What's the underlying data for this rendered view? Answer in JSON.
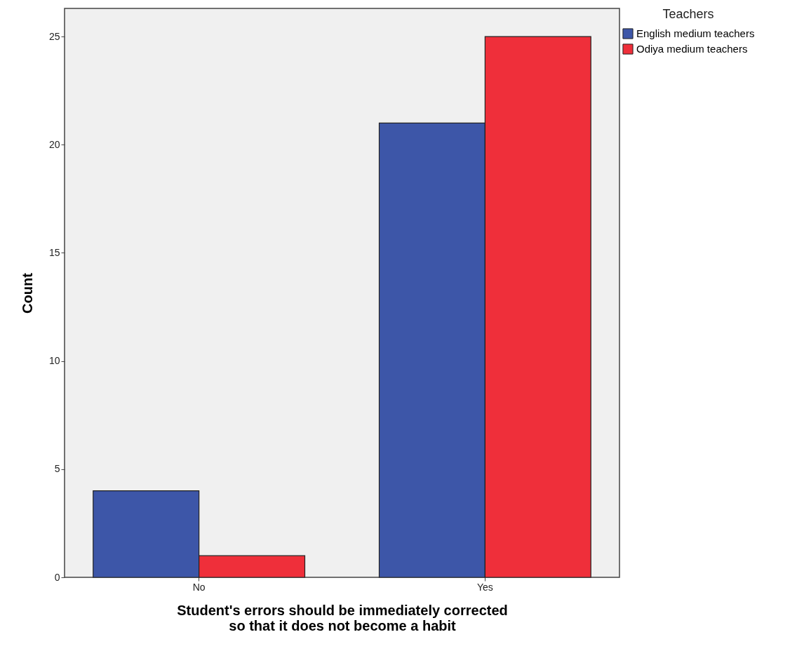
{
  "chart_data": {
    "type": "bar",
    "xlabel": "Student's errors should be immediately corrected so that it does not become a habit",
    "ylabel": "Count",
    "legend_title": "Teachers",
    "categories": [
      "No",
      "Yes"
    ],
    "series": [
      {
        "name": "English medium teachers",
        "color": "#3d56a8",
        "values": [
          4,
          21
        ]
      },
      {
        "name": "Odiya medium teachers",
        "color": "#ef2f3a",
        "values": [
          1,
          25
        ]
      }
    ],
    "ylim": [
      0,
      26.3
    ],
    "yticks": [
      0,
      5,
      10,
      15,
      20,
      25
    ],
    "grid": false,
    "legend": "top right"
  }
}
